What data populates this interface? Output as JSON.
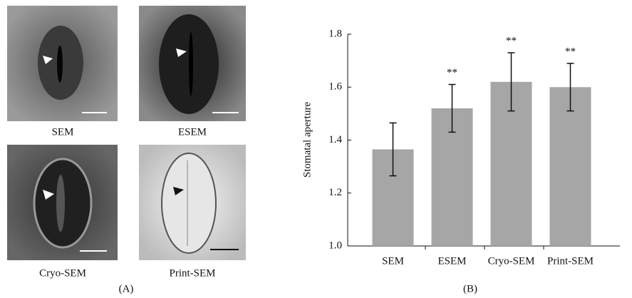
{
  "figure": {
    "image_labels": [
      "SEM",
      "ESEM",
      "Cryo-SEM",
      "Print-SEM"
    ],
    "panel_a": "(A)",
    "panel_b": "(B)"
  },
  "chart_data": {
    "type": "bar",
    "y_label": "Stomatal aperture",
    "categories": [
      "SEM",
      "ESEM",
      "Cryo-SEM",
      "Print-SEM"
    ],
    "values": [
      1.365,
      1.52,
      1.62,
      1.6
    ],
    "errors": [
      0.1,
      0.09,
      0.11,
      0.09
    ],
    "annotations": [
      null,
      "**",
      "**",
      "**"
    ],
    "color": "#a6a6a6",
    "ylim": [
      1.0,
      1.8
    ],
    "yticks": [
      {
        "value": 1.0,
        "label": "1.0"
      },
      1.2,
      1.4,
      1.6,
      1.8
    ]
  }
}
